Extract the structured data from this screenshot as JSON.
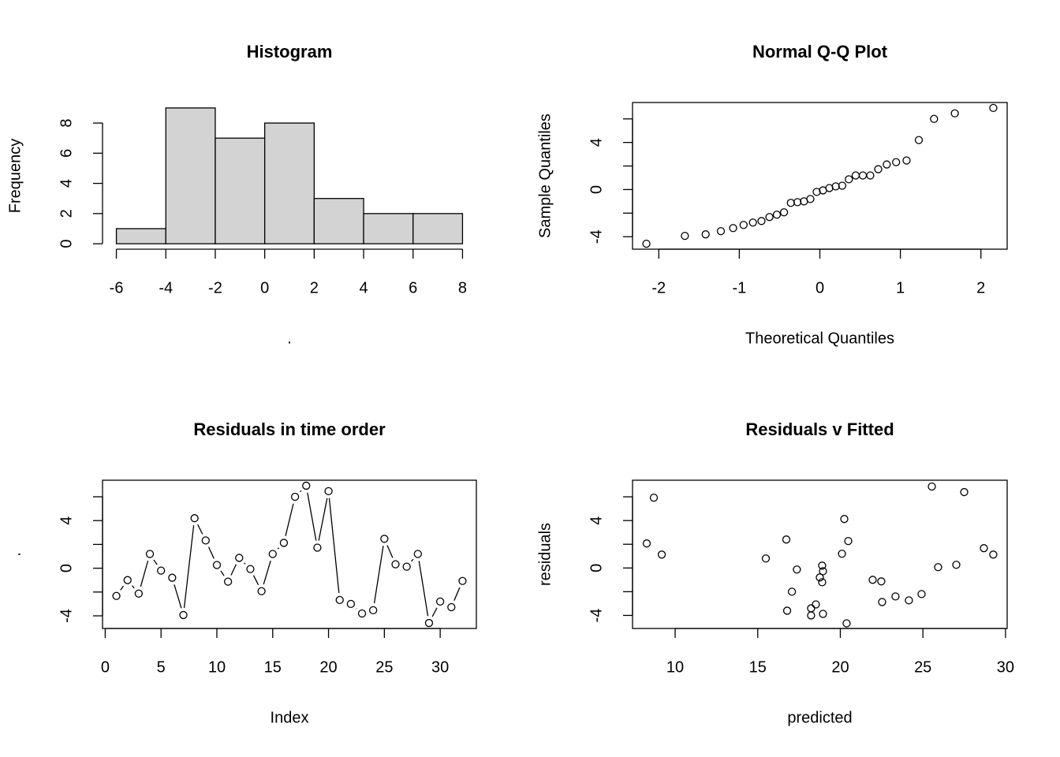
{
  "chart_data": [
    {
      "type": "histogram",
      "title": "Histogram",
      "xlabel": ".",
      "ylabel": "Frequency",
      "bins": [
        -6,
        -4,
        -2,
        0,
        2,
        4,
        6,
        8
      ],
      "values": [
        1,
        9,
        7,
        8,
        3,
        2,
        2
      ],
      "color": "#d3d3d3",
      "xlim": [
        -6.56,
        8.56
      ],
      "ylim": [
        -0.36,
        9.36
      ],
      "xticks": [
        -6,
        -4,
        -2,
        0,
        2,
        4,
        6,
        8
      ],
      "yticks": [
        0,
        2,
        4,
        6,
        8
      ]
    },
    {
      "type": "scatter",
      "title": "Normal Q-Q Plot",
      "xlabel": "Theoretical Quantiles",
      "ylabel": "Sample Quantiles",
      "x": [
        -2.154,
        -1.676,
        -1.418,
        -1.229,
        -1.077,
        -0.947,
        -0.831,
        -0.725,
        -0.626,
        -0.534,
        -0.445,
        -0.36,
        -0.278,
        -0.197,
        -0.118,
        -0.039,
        0.039,
        0.118,
        0.197,
        0.278,
        0.36,
        0.445,
        0.534,
        0.626,
        0.725,
        0.831,
        0.947,
        1.077,
        1.229,
        1.418,
        1.676,
        2.154
      ],
      "values": [
        -4.6,
        -3.93,
        -3.8,
        -3.53,
        -3.27,
        -3.0,
        -2.8,
        -2.67,
        -2.33,
        -2.13,
        -1.93,
        -1.13,
        -1.07,
        -1.0,
        -0.8,
        -0.2,
        -0.07,
        0.13,
        0.27,
        0.33,
        0.87,
        1.2,
        1.2,
        1.2,
        1.73,
        2.13,
        2.33,
        2.47,
        4.2,
        6.0,
        6.47,
        6.93
      ],
      "color": "#000000",
      "xlim": [
        -2.326,
        2.326
      ],
      "ylim": [
        -5.06,
        7.39
      ],
      "xticks": [
        -2,
        -1,
        0,
        1,
        2
      ],
      "yticks": [
        -4,
        0,
        4
      ],
      "yminorticks": [
        -2,
        2,
        6
      ]
    },
    {
      "type": "line",
      "title": "Residuals in time order",
      "xlabel": "Index",
      "ylabel": ".",
      "x": [
        1,
        2,
        3,
        4,
        5,
        6,
        7,
        8,
        9,
        10,
        11,
        12,
        13,
        14,
        15,
        16,
        17,
        18,
        19,
        20,
        21,
        22,
        23,
        24,
        25,
        26,
        27,
        28,
        29,
        30,
        31,
        32
      ],
      "values": [
        -2.33,
        -1.0,
        -2.13,
        1.2,
        -0.2,
        -0.8,
        -3.93,
        4.2,
        2.33,
        0.27,
        -1.13,
        0.87,
        -0.07,
        -1.93,
        1.2,
        2.13,
        6.0,
        6.93,
        1.73,
        6.47,
        -2.67,
        -3.0,
        -3.8,
        -3.53,
        2.47,
        0.33,
        0.13,
        1.2,
        -4.6,
        -2.8,
        -3.27,
        -1.07
      ],
      "color": "#000000",
      "xlim": [
        -0.24,
        33.24
      ],
      "ylim": [
        -5.06,
        7.39
      ],
      "xticks": [
        0,
        5,
        10,
        15,
        20,
        25,
        30
      ],
      "yticks": [
        -4,
        0,
        4
      ],
      "yminorticks": [
        -2,
        2,
        6
      ]
    },
    {
      "type": "scatter",
      "title": "Residuals v Fitted",
      "xlabel": "predicted",
      "ylabel": "residuals",
      "x": [
        8.28,
        8.71,
        9.19,
        15.49,
        16.73,
        16.78,
        17.07,
        17.37,
        18.23,
        18.23,
        18.52,
        18.76,
        18.9,
        18.95,
        18.9,
        18.95,
        20.1,
        20.24,
        20.38,
        20.48,
        21.96,
        22.48,
        22.53,
        23.34,
        24.15,
        24.92,
        25.54,
        25.92,
        27.02,
        27.5,
        28.69,
        29.26
      ],
      "values": [
        2.07,
        5.93,
        1.13,
        0.8,
        2.4,
        -3.6,
        -2.0,
        -0.13,
        -3.4,
        -4.0,
        -3.07,
        -0.8,
        0.2,
        -0.27,
        -1.2,
        -3.87,
        1.2,
        4.13,
        -4.67,
        2.27,
        -1.0,
        -1.13,
        -2.87,
        -2.4,
        -2.73,
        -2.2,
        6.87,
        0.07,
        0.27,
        6.4,
        1.67,
        1.13
      ],
      "color": "#000000",
      "xlim": [
        7.42,
        30.1
      ],
      "ylim": [
        -5.1,
        7.4
      ],
      "xticks": [
        10,
        15,
        20,
        25,
        30
      ],
      "yticks": [
        -4,
        0,
        4
      ],
      "yminorticks": [
        -2,
        2,
        6
      ]
    }
  ]
}
